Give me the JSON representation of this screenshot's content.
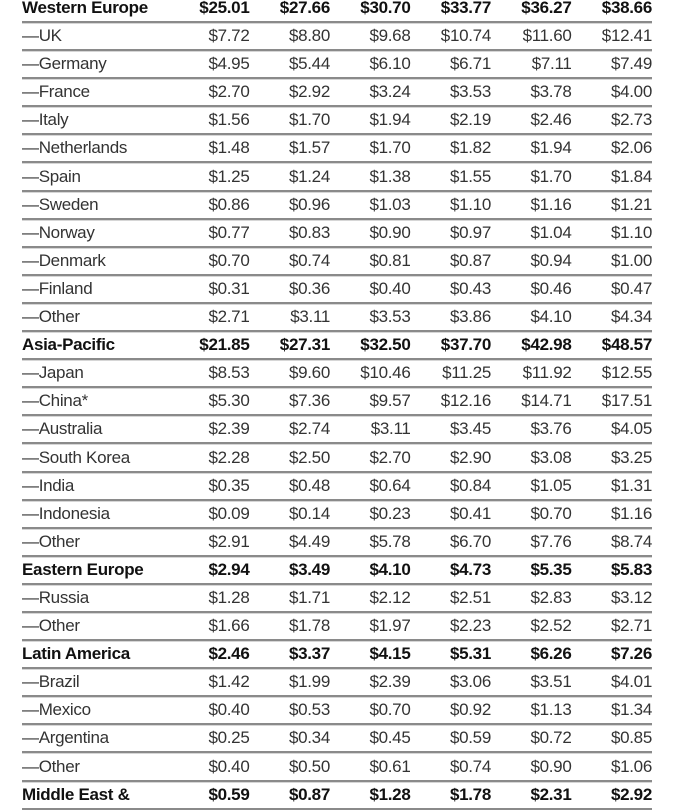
{
  "table": {
    "rows": [
      {
        "type": "region",
        "label": "Western Europe",
        "values": [
          "$25.01",
          "$27.66",
          "$30.70",
          "$33.77",
          "$36.27",
          "$38.66"
        ]
      },
      {
        "type": "sub",
        "label": "—UK",
        "values": [
          "$7.72",
          "$8.80",
          "$9.68",
          "$10.74",
          "$11.60",
          "$12.41"
        ]
      },
      {
        "type": "sub",
        "label": "—Germany",
        "values": [
          "$4.95",
          "$5.44",
          "$6.10",
          "$6.71",
          "$7.11",
          "$7.49"
        ]
      },
      {
        "type": "sub",
        "label": "—France",
        "values": [
          "$2.70",
          "$2.92",
          "$3.24",
          "$3.53",
          "$3.78",
          "$4.00"
        ]
      },
      {
        "type": "sub",
        "label": "—Italy",
        "values": [
          "$1.56",
          "$1.70",
          "$1.94",
          "$2.19",
          "$2.46",
          "$2.73"
        ]
      },
      {
        "type": "sub",
        "label": "—Netherlands",
        "values": [
          "$1.48",
          "$1.57",
          "$1.70",
          "$1.82",
          "$1.94",
          "$2.06"
        ]
      },
      {
        "type": "sub",
        "label": "—Spain",
        "values": [
          "$1.25",
          "$1.24",
          "$1.38",
          "$1.55",
          "$1.70",
          "$1.84"
        ]
      },
      {
        "type": "sub",
        "label": "—Sweden",
        "values": [
          "$0.86",
          "$0.96",
          "$1.03",
          "$1.10",
          "$1.16",
          "$1.21"
        ]
      },
      {
        "type": "sub",
        "label": "—Norway",
        "values": [
          "$0.77",
          "$0.83",
          "$0.90",
          "$0.97",
          "$1.04",
          "$1.10"
        ]
      },
      {
        "type": "sub",
        "label": "—Denmark",
        "values": [
          "$0.70",
          "$0.74",
          "$0.81",
          "$0.87",
          "$0.94",
          "$1.00"
        ]
      },
      {
        "type": "sub",
        "label": "—Finland",
        "values": [
          "$0.31",
          "$0.36",
          "$0.40",
          "$0.43",
          "$0.46",
          "$0.47"
        ]
      },
      {
        "type": "sub",
        "label": "—Other",
        "values": [
          "$2.71",
          "$3.11",
          "$3.53",
          "$3.86",
          "$4.10",
          "$4.34"
        ]
      },
      {
        "type": "region",
        "label": "Asia-Pacific",
        "values": [
          "$21.85",
          "$27.31",
          "$32.50",
          "$37.70",
          "$42.98",
          "$48.57"
        ]
      },
      {
        "type": "sub",
        "label": "—Japan",
        "values": [
          "$8.53",
          "$9.60",
          "$10.46",
          "$11.25",
          "$11.92",
          "$12.55"
        ]
      },
      {
        "type": "sub",
        "label": "—China*",
        "values": [
          "$5.30",
          "$7.36",
          "$9.57",
          "$12.16",
          "$14.71",
          "$17.51"
        ]
      },
      {
        "type": "sub",
        "label": "—Australia",
        "values": [
          "$2.39",
          "$2.74",
          "$3.11",
          "$3.45",
          "$3.76",
          "$4.05"
        ]
      },
      {
        "type": "sub",
        "label": "—South Korea",
        "values": [
          "$2.28",
          "$2.50",
          "$2.70",
          "$2.90",
          "$3.08",
          "$3.25"
        ]
      },
      {
        "type": "sub",
        "label": "—India",
        "values": [
          "$0.35",
          "$0.48",
          "$0.64",
          "$0.84",
          "$1.05",
          "$1.31"
        ]
      },
      {
        "type": "sub",
        "label": "—Indonesia",
        "values": [
          "$0.09",
          "$0.14",
          "$0.23",
          "$0.41",
          "$0.70",
          "$1.16"
        ]
      },
      {
        "type": "sub",
        "label": "—Other",
        "values": [
          "$2.91",
          "$4.49",
          "$5.78",
          "$6.70",
          "$7.76",
          "$8.74"
        ]
      },
      {
        "type": "region",
        "label": "Eastern Europe",
        "values": [
          "$2.94",
          "$3.49",
          "$4.10",
          "$4.73",
          "$5.35",
          "$5.83"
        ]
      },
      {
        "type": "sub",
        "label": "—Russia",
        "values": [
          "$1.28",
          "$1.71",
          "$2.12",
          "$2.51",
          "$2.83",
          "$3.12"
        ]
      },
      {
        "type": "sub",
        "label": "—Other",
        "values": [
          "$1.66",
          "$1.78",
          "$1.97",
          "$2.23",
          "$2.52",
          "$2.71"
        ]
      },
      {
        "type": "region",
        "label": "Latin America",
        "values": [
          "$2.46",
          "$3.37",
          "$4.15",
          "$5.31",
          "$6.26",
          "$7.26"
        ]
      },
      {
        "type": "sub",
        "label": "—Brazil",
        "values": [
          "$1.42",
          "$1.99",
          "$2.39",
          "$3.06",
          "$3.51",
          "$4.01"
        ]
      },
      {
        "type": "sub",
        "label": "—Mexico",
        "values": [
          "$0.40",
          "$0.53",
          "$0.70",
          "$0.92",
          "$1.13",
          "$1.34"
        ]
      },
      {
        "type": "sub",
        "label": "—Argentina",
        "values": [
          "$0.25",
          "$0.34",
          "$0.45",
          "$0.59",
          "$0.72",
          "$0.85"
        ]
      },
      {
        "type": "sub",
        "label": "—Other",
        "values": [
          "$0.40",
          "$0.50",
          "$0.61",
          "$0.74",
          "$0.90",
          "$1.06"
        ]
      },
      {
        "type": "region",
        "label": "Middle East &",
        "values": [
          "$0.59",
          "$0.87",
          "$1.28",
          "$1.78",
          "$2.31",
          "$2.92"
        ]
      }
    ]
  }
}
